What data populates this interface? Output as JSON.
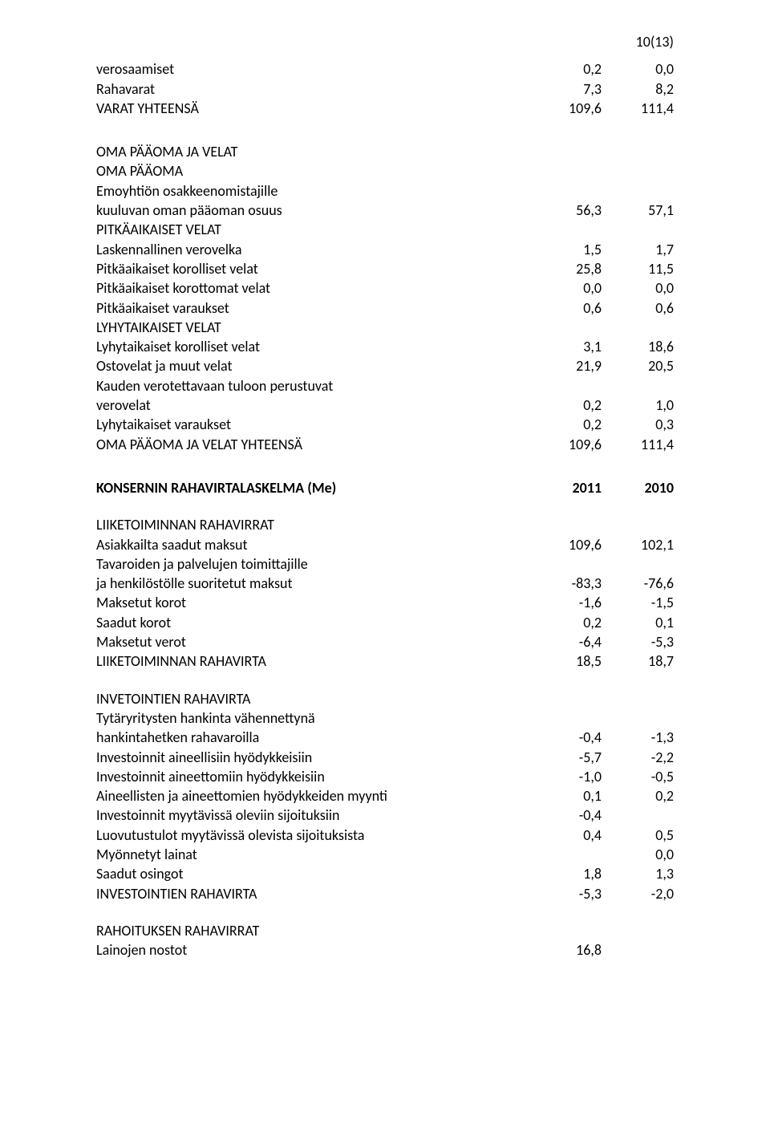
{
  "pageNumber": "10(13)",
  "rows": [
    {
      "label": "verosaamiset",
      "v1": "0,2",
      "v2": "0,0"
    },
    {
      "label": "Rahavarat",
      "v1": "7,3",
      "v2": "8,2"
    },
    {
      "label": "VARAT YHTEENSÄ",
      "v1": "109,6",
      "v2": "111,4"
    }
  ],
  "section2Header1": "OMA PÄÄOMA JA VELAT",
  "section2Header2": "OMA PÄÄOMA",
  "rows2": [
    {
      "label": "Emoyhtiön osakkeenomistajille"
    },
    {
      "label": "kuuluvan oman pääoman osuus",
      "v1": "56,3",
      "v2": "57,1"
    },
    {
      "label": "PITKÄAIKAISET VELAT"
    },
    {
      "label": "Laskennallinen verovelka",
      "v1": "1,5",
      "v2": "1,7"
    },
    {
      "label": "Pitkäaikaiset korolliset velat",
      "v1": "25,8",
      "v2": "11,5"
    },
    {
      "label": "Pitkäaikaiset korottomat velat",
      "v1": "0,0",
      "v2": "0,0"
    },
    {
      "label": "Pitkäaikaiset varaukset",
      "v1": "0,6",
      "v2": "0,6"
    },
    {
      "label": "LYHYTAIKAISET VELAT"
    },
    {
      "label": "Lyhytaikaiset korolliset velat",
      "v1": "3,1",
      "v2": "18,6"
    },
    {
      "label": "Ostovelat ja muut velat",
      "v1": "21,9",
      "v2": "20,5"
    },
    {
      "label": "Kauden verotettavaan tuloon perustuvat"
    },
    {
      "label": "verovelat",
      "v1": "0,2",
      "v2": "1,0"
    },
    {
      "label": "Lyhytaikaiset varaukset",
      "v1": "0,2",
      "v2": "0,3"
    },
    {
      "label": "OMA PÄÄOMA JA VELAT YHTEENSÄ",
      "v1": "109,6",
      "v2": "111,4"
    }
  ],
  "cashflowHeader": {
    "label": "KONSERNIN RAHAVIRTALASKELMA (Me)",
    "v1": "2011",
    "v2": "2010"
  },
  "cashflow1Header": "LIIKETOIMINNAN RAHAVIRRAT",
  "cashflow1": [
    {
      "label": "Asiakkailta saadut maksut",
      "v1": "109,6",
      "v2": "102,1"
    },
    {
      "label": "Tavaroiden ja palvelujen toimittajille"
    },
    {
      "label": "ja henkilöstölle suoritetut maksut",
      "v1": "-83,3",
      "v2": "-76,6"
    },
    {
      "label": "Maksetut korot",
      "v1": "-1,6",
      "v2": "-1,5"
    },
    {
      "label": "Saadut korot",
      "v1": "0,2",
      "v2": "0,1"
    },
    {
      "label": "Maksetut verot",
      "v1": "-6,4",
      "v2": "-5,3"
    },
    {
      "label": "LIIKETOIMINNAN RAHAVIRTA",
      "v1": "18,5",
      "v2": "18,7"
    }
  ],
  "cashflow2Header": "INVETOINTIEN RAHAVIRTA",
  "cashflow2": [
    {
      "label": "Tytäryritysten hankinta vähennettynä"
    },
    {
      "label": "hankintahetken rahavaroilla",
      "v1": "-0,4",
      "v2": "-1,3"
    },
    {
      "label": "Investoinnit aineellisiin hyödykkeisiin",
      "v1": "-5,7",
      "v2": "-2,2"
    },
    {
      "label": "Investoinnit aineettomiin hyödykkeisiin",
      "v1": "-1,0",
      "v2": "-0,5"
    },
    {
      "label": "Aineellisten ja aineettomien hyödykkeiden myynti",
      "v1": "0,1",
      "v2": "0,2"
    },
    {
      "label": "Investoinnit myytävissä oleviin sijoituksiin",
      "v1": "-0,4",
      "v2": ""
    },
    {
      "label": "Luovutustulot myytävissä olevista sijoituksista",
      "v1": "0,4",
      "v2": "0,5"
    },
    {
      "label": "Myönnetyt lainat",
      "v1": "",
      "v2": "0,0"
    },
    {
      "label": "Saadut osingot",
      "v1": "1,8",
      "v2": "1,3"
    },
    {
      "label": "INVESTOINTIEN RAHAVIRTA",
      "v1": "-5,3",
      "v2": "-2,0"
    }
  ],
  "cashflow3Header": "RAHOITUKSEN RAHAVIRRAT",
  "cashflow3": [
    {
      "label": "Lainojen nostot",
      "v1": "16,8",
      "v2": ""
    }
  ]
}
